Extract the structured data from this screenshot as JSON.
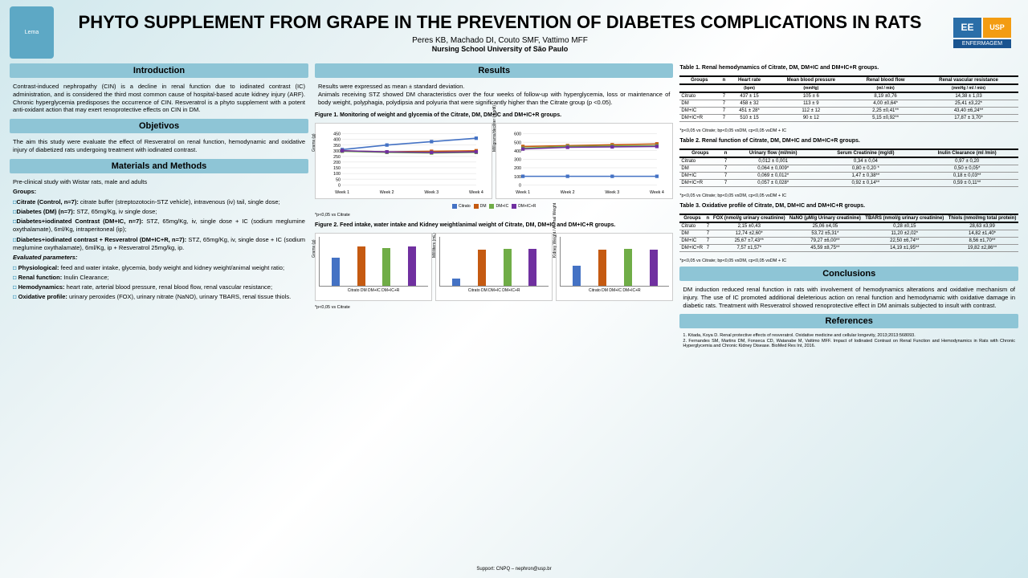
{
  "title": "PHYTO SUPPLEMENT FROM GRAPE IN THE PREVENTION OF DIABETES COMPLICATIONS IN RATS",
  "authors": "Peres KB, Machado DI, Couto SMF, Vattimo MFF",
  "affiliation": "Nursing School University of São Paulo",
  "logos": {
    "left": "Lema",
    "ee": "EE",
    "usp": "USP",
    "enf": "ENFERMAGEM"
  },
  "sections": {
    "intro_h": "Introduction",
    "intro": "Contrast-induced nephropathy (CIN) is a decline in renal function due to iodinated contrast (IC) administration, and is considered the third most common cause of hospital-based acute kidney injury (ARF). Chronic hyperglycemia predisposes the occurrence of CIN. Resveratrol is a phyto supplement with a potent anti-oxidant action that may exert renoprotective effects on CIN in DM.",
    "obj_h": "Objetivos",
    "obj": "The aim this study were evaluate the effect of Resveratrol on renal function, hemodynamic and oxidative injury of diabetized rats undergoing treatment with iodinated contrast.",
    "mm_h": "Materials and Methods",
    "mm_intro": "Pre-clinical study with Wistar rats, male and adults",
    "groups_h": "Groups:",
    "groups": [
      {
        "name": "Citrate (Control, n=7):",
        "desc": " citrate buffer (streptozotocin-STZ vehicle), intravenous (iv) tail, single dose;"
      },
      {
        "name": "Diabetes (DM) (n=7):",
        "desc": " STZ, 65mg/Kg, iv single dose;"
      },
      {
        "name": "Diabetes+iodinated Contrast (DM+IC, n=7):",
        "desc": " STZ, 65mg/Kg, iv, single dose + IC (sodium meglumine oxythalamate), 6ml/Kg, intraperitoneal (ip);"
      },
      {
        "name": "Diabetes+iodinated contrast + Resveratrol (DM+IC+R, n=7):",
        "desc": " STZ, 65mg/Kg, iv, single dose + IC (sodium meglumine oxythalamate), 6ml/Kg, ip + Resveratrol 25mg/kg, ip."
      }
    ],
    "eval_h": "Evaluated parameters:",
    "eval": [
      {
        "name": "Physiological:",
        "desc": " feed and water intake, glycemia, body weight and kidney weight/animal weight ratio;"
      },
      {
        "name": "Renal function:",
        "desc": " Inulin Clearance;"
      },
      {
        "name": "Hemodynamics:",
        "desc": " heart rate, arterial blood pressure, renal blood flow, renal vascular resistance;"
      },
      {
        "name": "Oxidative profile:",
        "desc": " urinary peroxides (FOX), urinary nitrate (NaNO), urinary TBARS, renal tissue thiols."
      }
    ],
    "res_h": "Results",
    "res_intro": "Results were expressed as mean ± standard deviation.\nAnimals receiving STZ showed DM characteristics over the four weeks of follow-up with hyperglycemia, loss or maintenance of body weight, polyphagia, polydipsia and polyuria that were significantly higher than the Citrate group (p <0.05).",
    "fig1_cap": "Figure 1. Monitoring of weight and glycemia of the Citrate, DM, DM+IC and DM+IC+R groups.",
    "fig2_cap": "Figure 2. Feed intake, water intake and Kidney weight/animal weight of Citrate, DM, DM+IC and DM+IC+R groups.",
    "footnote_citrate": "*p<0,05 vs Citrate",
    "footnote_full": "*p<0,05 vs Citrate; bp<0,05 vsDM, cp<0,05 vsDM + IC",
    "conc_h": "Conclusions",
    "conc": "DM induction reduced renal function in rats with involvement of hemodynamics alterations and oxidative mechanism of injury. The use of IC promoted additional deleterious action on renal function and hemodynamic with oxidative damage in diabetic rats. Treatment with Resveratrol showed renoprotective effect in DM animals subjected to insult with contrast.",
    "ref_h": "References",
    "refs": "1. Kitada, Koya D. Renal protective effects of resveratrol. Oxidative medicine and cellular longevity, 2013;2013:568093.\n2. Fernandes SM, Martins DM, Fonseca CD, Watanabe M, Vattimo MFF. Impact of Iodinated Contrast on Renal Function and Hemodynamics in Rats with Chronic Hyperglycemia and Chronic Kidney Disease. BioMed Res Int, 2016.",
    "support": "Support: CNPQ – nephron@usp.br"
  },
  "charts": {
    "colors": {
      "citrato": "#4472c4",
      "dm": "#c55a11",
      "dmic": "#70ad47",
      "dmicr": "#7030a0"
    },
    "weeks": [
      "Week 1",
      "Week 2",
      "Week 3",
      "Week 4"
    ],
    "groups": [
      "Citrato",
      "DM",
      "DM+IC",
      "DM+IC+R"
    ],
    "fig1_weight": {
      "ylabel": "Grams (g)",
      "ylim": [
        0,
        450
      ],
      "yticks": [
        0,
        50,
        100,
        150,
        200,
        250,
        300,
        350,
        400,
        450
      ],
      "series": {
        "citrato": [
          310,
          350,
          380,
          410
        ],
        "dm": [
          300,
          290,
          295,
          300
        ],
        "dmic": [
          295,
          285,
          280,
          285
        ],
        "dmicr": [
          300,
          290,
          285,
          290
        ]
      }
    },
    "fig1_glycemia": {
      "ylabel": "Milligrams/deciliter (mg/dl)",
      "ylim": [
        0,
        600
      ],
      "yticks": [
        0,
        100,
        200,
        300,
        400,
        500,
        600
      ],
      "series": {
        "citrato": [
          100,
          100,
          100,
          100
        ],
        "dm": [
          450,
          460,
          470,
          480
        ],
        "dmic": [
          430,
          450,
          455,
          460
        ],
        "dmicr": [
          420,
          440,
          445,
          450
        ]
      }
    },
    "fig2_feed": {
      "ylabel": "Grams (g)",
      "ylim": [
        0,
        45
      ],
      "values": [
        27,
        38,
        37,
        38
      ]
    },
    "fig2_water": {
      "ylabel": "Milliliters (mL)",
      "ylim": [
        0,
        180
      ],
      "values": [
        30,
        140,
        145,
        145
      ]
    },
    "fig2_kidney": {
      "ylabel": "Kidney Weight / Animal Weight",
      "ylim": [
        0,
        0.8
      ],
      "values": [
        0.35,
        0.62,
        0.64,
        0.62
      ]
    }
  },
  "tables": {
    "t1": {
      "caption": "Table 1. Renal hemodynamics of Citrate, DM, DM+IC and DM+IC+R groups.",
      "headers": [
        "Groups",
        "n",
        "Heart rate",
        "Mean blood pressure",
        "Renal blood flow",
        "Renal vascular resistance"
      ],
      "subheaders": [
        "",
        "",
        "(bpm)",
        "(mmHg)",
        "(ml / min)",
        "(mmHg / ml / min)"
      ],
      "rows": [
        [
          "Citrato",
          "7",
          "437 ± 15",
          "105 ± 6",
          "8,19 ±0,76",
          "14,38 ± 1,03"
        ],
        [
          "DM",
          "7",
          "458 ± 32",
          "113 ± 9",
          "4,00 ±0,64*",
          "25,41 ±3,22*"
        ],
        [
          "DM+IC",
          "7",
          "451 ± 28*",
          "112 ± 12",
          "2,25 ±0,41**",
          "43,40 ±6,24**"
        ],
        [
          "DM+IC+R",
          "7",
          "510 ± 15",
          "90 ± 12",
          "5,15 ±0,92**",
          "17,87 ± 3,70*"
        ]
      ]
    },
    "t2": {
      "caption": "Table 2. Renal function of Citrate, DM, DM+IC and DM+IC+R groups.",
      "headers": [
        "Groups",
        "n",
        "Urinary flow (ml/min)",
        "Serum Creatinine (mg/dl)",
        "Inulin Clearance (ml /min)"
      ],
      "rows": [
        [
          "Citrato",
          "7",
          "0,012 ± 0,001",
          "0,34 ± 0,04",
          "0,97 ± 0,20"
        ],
        [
          "DM",
          "7",
          "0,064 ± 0,009*",
          "0,80 ± 0,20 *",
          "0,50 ± 0,05*"
        ],
        [
          "DM+IC",
          "7",
          "0,069 ± 0,012*",
          "1,47 ± 0,38**",
          "0,18 ± 0,03**"
        ],
        [
          "DM+IC+R",
          "7",
          "0,057 ± 0,028*",
          "0,92 ± 0,14**",
          "0,59 ± 0,11**"
        ]
      ]
    },
    "t3": {
      "caption": "Table 3. Oxidative profile of Citrate, DM, DM+IC and DM+IC+R groups.",
      "headers": [
        "Groups",
        "n",
        "FOX (nmol/g urinary creatinine)",
        "NaNO (μM/g Urinary creatinine)",
        "TBARS (nmol/g urinary creatinine)",
        "Thiols (nmol/mg total protein)"
      ],
      "rows": [
        [
          "Citrato",
          "7",
          "2,15 ±0,43",
          "25,06 ±4,05",
          "0,28 ±0,15",
          "28,63 ±3,99"
        ],
        [
          "DM",
          "7",
          "12,74 ±2,60*",
          "53,72 ±5,31*",
          "11,20 ±2,02*",
          "14,82 ±1,40*"
        ],
        [
          "DM+IC",
          "7",
          "25,67 ±7,43**",
          "79,27 ±6,00**",
          "22,50 ±6,74**",
          "8,56 ±1,70**"
        ],
        [
          "DM+IC+R",
          "7",
          "7,57 ±1,57*",
          "45,59 ±8,75**",
          "14,19 ±1,95**",
          "19,82 ±2,86**"
        ]
      ]
    }
  }
}
